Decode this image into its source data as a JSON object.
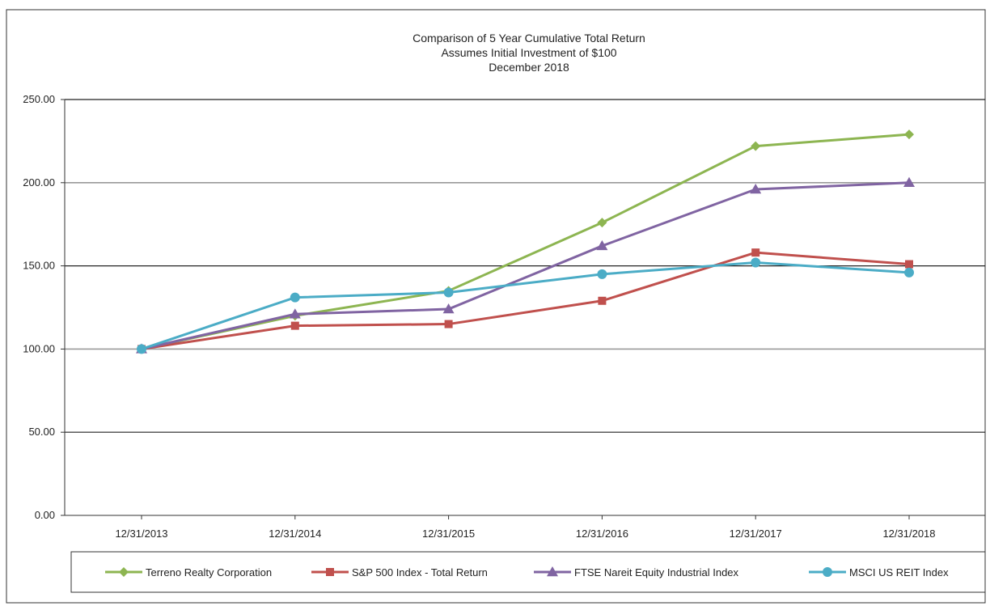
{
  "chart_data": {
    "type": "line",
    "title_lines": [
      "Comparison  of 5 Year Cumulative  Total Return",
      "Assumes Initial Investment  of $100",
      "December  2018"
    ],
    "xlabel": "",
    "ylabel": "",
    "categories": [
      "12/31/2013",
      "12/31/2014",
      "12/31/2015",
      "12/31/2016",
      "12/31/2017",
      "12/31/2018"
    ],
    "y_tick_labels": [
      "0.00",
      "50.00",
      "100.00",
      "150.00",
      "200.00",
      "250.00"
    ],
    "y_ticks": [
      0,
      50,
      100,
      150,
      200,
      250
    ],
    "ylim": [
      0,
      250
    ],
    "grid": "horizontal",
    "legend_position": "bottom",
    "series": [
      {
        "name": "Terreno Realty Corporation",
        "marker": "diamond",
        "color": "#8db551",
        "values": [
          100,
          120,
          135,
          176,
          222,
          229
        ]
      },
      {
        "name": "S&P 500 Index - Total Return",
        "marker": "square",
        "color": "#c0504d",
        "values": [
          100,
          114,
          115,
          129,
          158,
          151
        ]
      },
      {
        "name": "FTSE Nareit Equity Industrial Index",
        "marker": "triangle",
        "color": "#8064a2",
        "values": [
          100,
          121,
          124,
          162,
          196,
          200
        ]
      },
      {
        "name": "MSCI US REIT Index",
        "marker": "circle",
        "color": "#4bacc6",
        "values": [
          100,
          131,
          134,
          145,
          152,
          146
        ]
      }
    ]
  }
}
